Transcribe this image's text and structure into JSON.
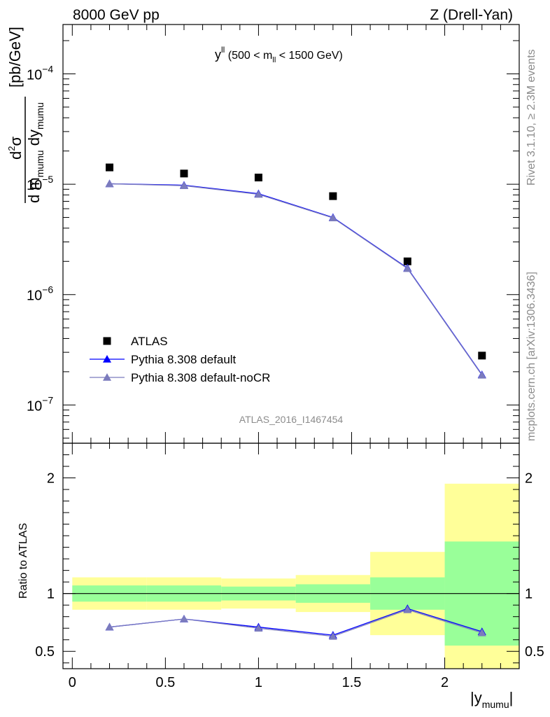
{
  "header": {
    "left": "8000 GeV pp",
    "right": "Z (Drell-Yan)"
  },
  "side_labels": {
    "top": "Rivet 3.1.10, ≥ 2.3M events",
    "bottom": "mcplots.cern.ch [arXiv:1306.3436]"
  },
  "watermark": "ATLAS_2016_I1467454",
  "colors": {
    "data": "#000000",
    "pythia_default": "#0000ff",
    "pythia_nocr": "#7b7bbd",
    "band_inner": "#99ff99",
    "band_outer": "#ffff99"
  },
  "chart_data": [
    {
      "type": "scatter",
      "title_main": "y",
      "title_sup": "ll",
      "title_rest": " (500 < m",
      "title_sub": "ll",
      "title_end": " < 1500 GeV)",
      "ylabel_unit": "[pb/GeV]",
      "ylabel_num": "d",
      "ylabel_num_sup": "2",
      "ylabel_num_end": "σ",
      "ylabel_den_1": "d m",
      "ylabel_den_sub1": "mumu",
      "ylabel_den_2": " dy",
      "ylabel_den_sub2": "mumu",
      "yscale": "log",
      "ylim": [
        4.5e-08,
        0.00028
      ],
      "xlim": [
        -0.05,
        2.4
      ],
      "yticks": [
        {
          "value": 1e-07,
          "base": "10",
          "exp": "−7"
        },
        {
          "value": 1e-06,
          "base": "10",
          "exp": "−6"
        },
        {
          "value": 1e-05,
          "base": "10",
          "exp": "−5"
        },
        {
          "value": 0.0001,
          "base": "10",
          "exp": "−4"
        }
      ],
      "x": [
        0.2,
        0.6,
        1.0,
        1.4,
        1.8,
        2.2
      ],
      "series": [
        {
          "name": "ATLAS",
          "marker": "square",
          "values": [
            1.42e-05,
            1.25e-05,
            1.15e-05,
            7.8e-06,
            2e-06,
            2.8e-07
          ]
        },
        {
          "name": "Pythia 8.308 default",
          "marker": "triangle",
          "values": [
            1.01e-05,
            9.8e-06,
            8.2e-06,
            5e-06,
            1.74e-06,
            1.88e-07
          ]
        },
        {
          "name": "Pythia 8.308 default-noCR",
          "marker": "triangle",
          "values": [
            1.01e-05,
            9.7e-06,
            8.1e-06,
            4.95e-06,
            1.72e-06,
            1.86e-07
          ]
        }
      ],
      "legend": "left"
    },
    {
      "type": "line",
      "ylabel": "Ratio to ATLAS",
      "xlabel_main": "|y",
      "xlabel_sub": "mumu",
      "xlabel_end": "|",
      "xlim": [
        -0.05,
        2.4
      ],
      "ylim": [
        0.35,
        2.3
      ],
      "xticks": [
        0,
        0.5,
        1,
        1.5,
        2
      ],
      "xtick_labels": [
        "0",
        "0.5",
        "1",
        "1.5",
        "2"
      ],
      "yticks": [
        0.5,
        1,
        2
      ],
      "ytick_labels": [
        "0.5",
        "1",
        "2"
      ],
      "bins": [
        [
          0.0,
          0.4
        ],
        [
          0.4,
          0.8
        ],
        [
          0.8,
          1.2
        ],
        [
          1.2,
          1.6
        ],
        [
          1.6,
          2.0
        ],
        [
          2.0,
          2.4
        ]
      ],
      "band_inner": [
        [
          0.93,
          1.07
        ],
        [
          0.93,
          1.07
        ],
        [
          0.94,
          1.06
        ],
        [
          0.92,
          1.08
        ],
        [
          0.86,
          1.14
        ],
        [
          0.55,
          1.45
        ]
      ],
      "band_outer": [
        [
          0.86,
          1.14
        ],
        [
          0.86,
          1.14
        ],
        [
          0.87,
          1.13
        ],
        [
          0.84,
          1.16
        ],
        [
          0.64,
          1.36
        ],
        [
          0.35,
          1.95
        ]
      ],
      "x": [
        0.2,
        0.6,
        1.0,
        1.4,
        1.8,
        2.2
      ],
      "series": [
        {
          "name": "Pythia 8.308 default",
          "values": [
            0.71,
            0.78,
            0.71,
            0.64,
            0.87,
            0.67
          ]
        },
        {
          "name": "Pythia 8.308 default-noCR",
          "values": [
            0.71,
            0.78,
            0.7,
            0.63,
            0.86,
            0.66
          ]
        }
      ]
    }
  ]
}
